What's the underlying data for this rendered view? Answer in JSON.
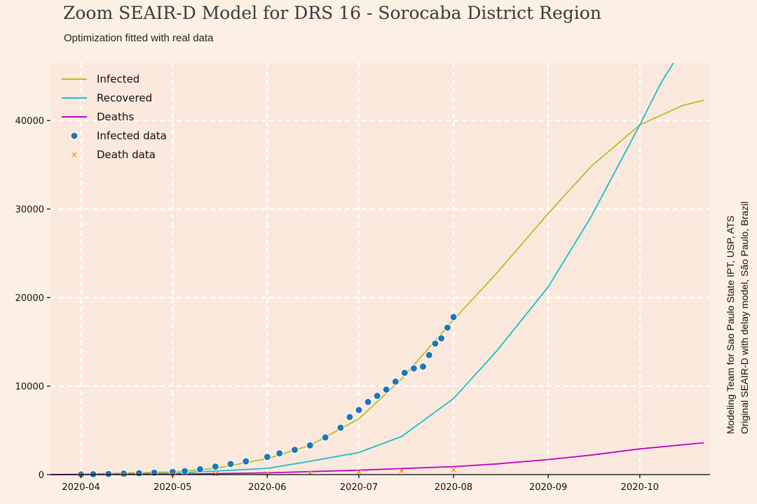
{
  "header": {
    "title": "Zoom SEAIR-D Model for DRS 16 - Sorocaba District Region",
    "subtitle": "Optimization fitted with real data"
  },
  "side_note": {
    "line1": "Modeling Team for Sao Paulo State IPT, USP, ATS",
    "line2": "Original SEAIR-D with delay model, São Paulo, Brazil"
  },
  "colors": {
    "background": "#fcf0e5",
    "plot_background": "#fae8dc",
    "grid": "#ffffff",
    "infected": "#bcbd22",
    "recovered": "#17becf",
    "deaths": "#c000c8",
    "infected_data": "#1f77b4",
    "death_data": "#ff7f0e"
  },
  "chart_data": {
    "type": "line",
    "title": "Zoom SEAIR-D Model for DRS 16 - Sorocaba District Region",
    "subtitle": "Optimization fitted with real data",
    "xlabel": "",
    "ylabel": "",
    "x_type": "date",
    "xlim": [
      "2020-03-22",
      "2020-10-24"
    ],
    "ylim": [
      0,
      46500
    ],
    "grid": true,
    "legend_position": "top-left",
    "x_ticks": [
      "2020-04-01",
      "2020-05-01",
      "2020-06-01",
      "2020-07-01",
      "2020-08-01",
      "2020-09-01",
      "2020-10-01"
    ],
    "x_tick_labels": [
      "2020-04",
      "2020-05",
      "2020-06",
      "2020-07",
      "2020-08",
      "2020-09",
      "2020-10"
    ],
    "y_ticks": [
      0,
      10000,
      20000,
      30000,
      40000
    ],
    "y_tick_labels": [
      "0",
      "10000",
      "20000",
      "30000",
      "40000"
    ],
    "series": [
      {
        "name": "Infected",
        "kind": "line",
        "x": [
          "2020-03-22",
          "2020-04-01",
          "2020-05-01",
          "2020-05-15",
          "2020-06-01",
          "2020-06-15",
          "2020-07-01",
          "2020-07-15",
          "2020-08-01",
          "2020-08-15",
          "2020-09-01",
          "2020-09-15",
          "2020-10-01",
          "2020-10-15",
          "2020-10-22"
        ],
        "y": [
          0,
          50,
          300,
          700,
          1800,
          3300,
          6300,
          10800,
          17500,
          22700,
          29500,
          34800,
          39500,
          41700,
          42300
        ]
      },
      {
        "name": "Recovered",
        "kind": "line",
        "x": [
          "2020-03-22",
          "2020-04-01",
          "2020-05-01",
          "2020-06-01",
          "2020-06-15",
          "2020-07-01",
          "2020-07-15",
          "2020-08-01",
          "2020-08-15",
          "2020-09-01",
          "2020-09-15",
          "2020-10-01",
          "2020-10-08",
          "2020-10-12"
        ],
        "y": [
          0,
          30,
          150,
          700,
          1500,
          2500,
          4300,
          8600,
          13900,
          21200,
          29100,
          39500,
          44300,
          46500
        ]
      },
      {
        "name": "Deaths",
        "kind": "line",
        "x": [
          "2020-03-22",
          "2020-04-01",
          "2020-05-01",
          "2020-06-01",
          "2020-07-01",
          "2020-08-01",
          "2020-08-15",
          "2020-09-01",
          "2020-09-15",
          "2020-10-01",
          "2020-10-22"
        ],
        "y": [
          0,
          10,
          40,
          200,
          500,
          900,
          1200,
          1700,
          2200,
          2900,
          3600
        ]
      },
      {
        "name": "Infected data",
        "kind": "scatter",
        "x": [
          "2020-04-01",
          "2020-04-05",
          "2020-04-10",
          "2020-04-15",
          "2020-04-20",
          "2020-04-25",
          "2020-05-01",
          "2020-05-05",
          "2020-05-10",
          "2020-05-15",
          "2020-05-20",
          "2020-05-25",
          "2020-06-01",
          "2020-06-05",
          "2020-06-10",
          "2020-06-15",
          "2020-06-20",
          "2020-06-25",
          "2020-06-28",
          "2020-07-01",
          "2020-07-04",
          "2020-07-07",
          "2020-07-10",
          "2020-07-13",
          "2020-07-16",
          "2020-07-19",
          "2020-07-22",
          "2020-07-24",
          "2020-07-26",
          "2020-07-28",
          "2020-07-30",
          "2020-08-01"
        ],
        "y": [
          20,
          40,
          70,
          110,
          160,
          220,
          300,
          400,
          600,
          900,
          1200,
          1500,
          2000,
          2400,
          2800,
          3300,
          4200,
          5300,
          6500,
          7300,
          8200,
          8900,
          9600,
          10500,
          11500,
          12000,
          12200,
          13500,
          14800,
          15400,
          16600,
          17800
        ]
      },
      {
        "name": "Death data",
        "kind": "scatter",
        "x": [
          "2020-04-01",
          "2020-04-15",
          "2020-05-01",
          "2020-05-15",
          "2020-06-01",
          "2020-06-15",
          "2020-07-01",
          "2020-07-15",
          "2020-08-01"
        ],
        "y": [
          5,
          10,
          20,
          60,
          120,
          200,
          300,
          420,
          560
        ]
      }
    ]
  }
}
